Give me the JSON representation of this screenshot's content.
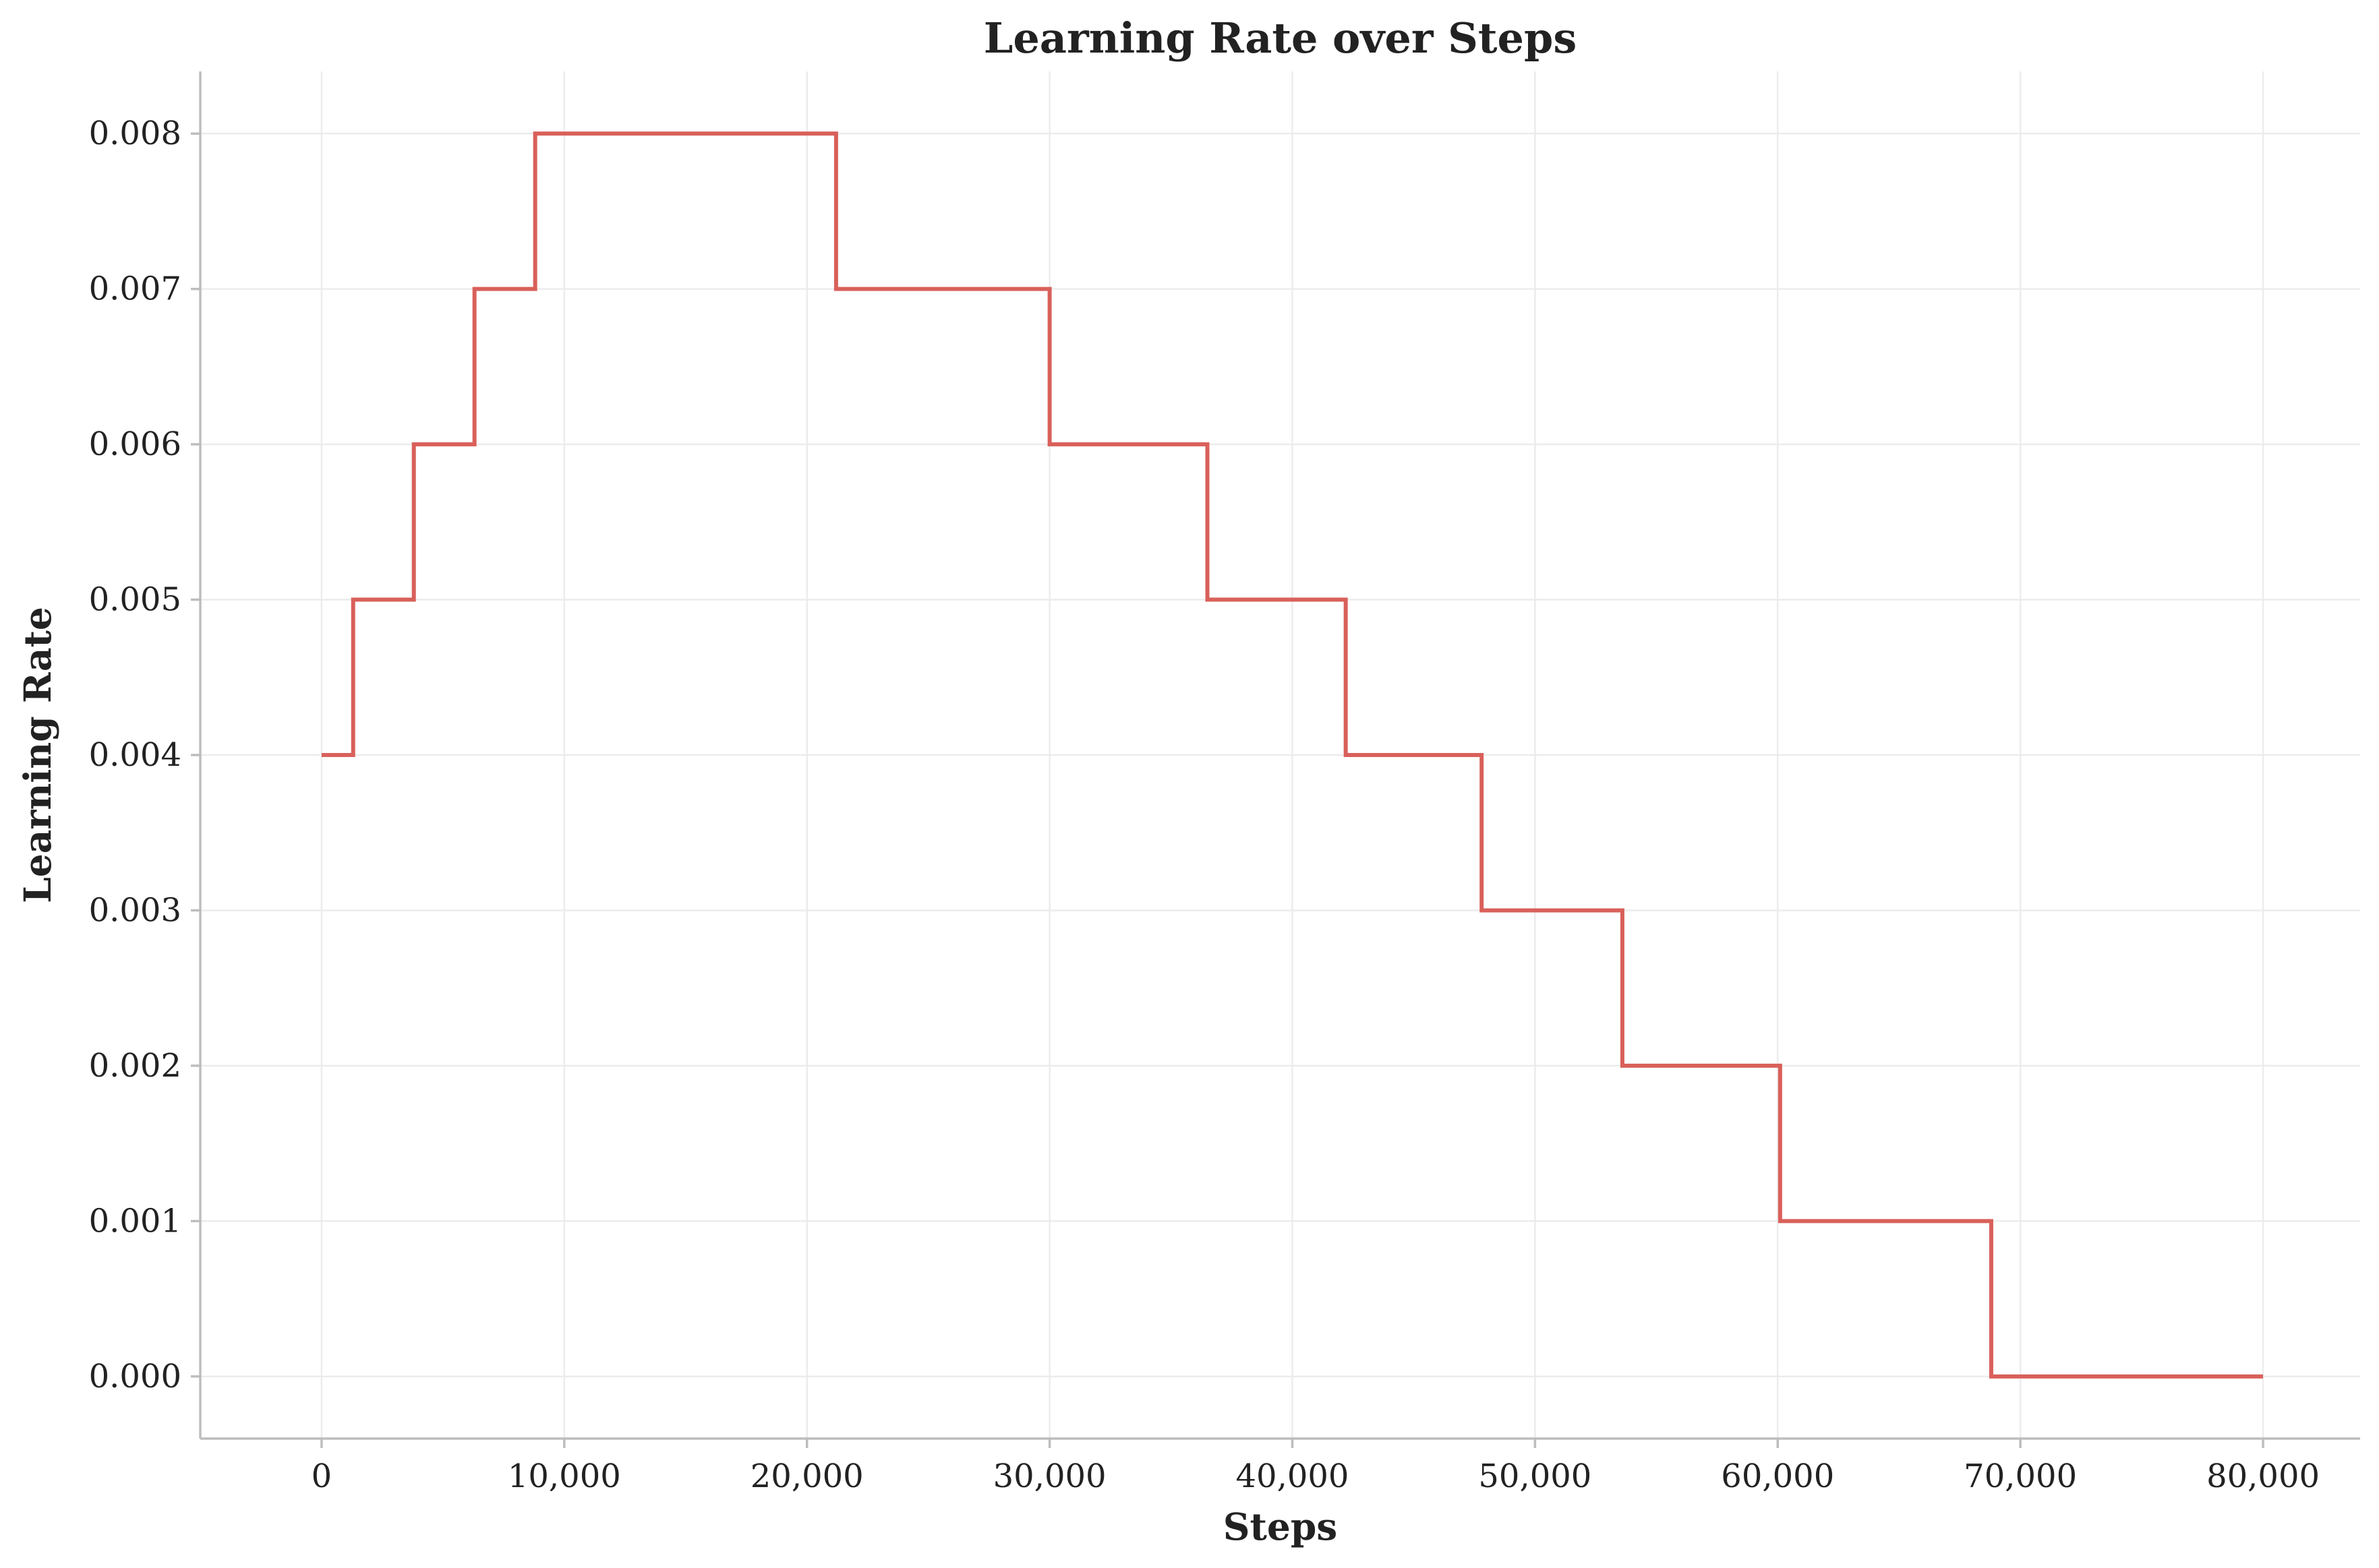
{
  "chart_data": {
    "type": "line",
    "title": "Learning Rate over Steps",
    "xlabel": "Steps",
    "ylabel": "Learning Rate",
    "xlim": [
      -5000,
      84000
    ],
    "ylim": [
      -0.0004,
      0.0084
    ],
    "xticks": [
      0,
      10000,
      20000,
      30000,
      40000,
      50000,
      60000,
      70000,
      80000
    ],
    "xtick_labels": [
      "0",
      "10,000",
      "20,000",
      "30,000",
      "40,000",
      "50,000",
      "60,000",
      "70,000",
      "80,000"
    ],
    "yticks": [
      0.0,
      0.001,
      0.002,
      0.003,
      0.004,
      0.005,
      0.006,
      0.007,
      0.008
    ],
    "ytick_labels": [
      "0.000",
      "0.001",
      "0.002",
      "0.003",
      "0.004",
      "0.005",
      "0.006",
      "0.007",
      "0.008"
    ],
    "grid": true,
    "step_style": "post",
    "series": [
      {
        "color": "#d9605a",
        "x": [
          0,
          1300,
          3800,
          6300,
          8800,
          21200,
          30000,
          36500,
          42200,
          47800,
          53600,
          60100,
          68800,
          80000
        ],
        "y": [
          0.004,
          0.005,
          0.006,
          0.007,
          0.008,
          0.007,
          0.006,
          0.005,
          0.004,
          0.003,
          0.002,
          0.001,
          0.0,
          0.0
        ]
      }
    ]
  }
}
